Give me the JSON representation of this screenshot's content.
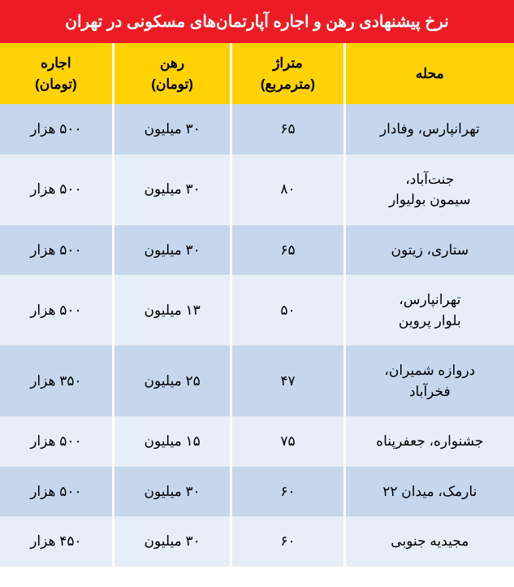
{
  "title": "نرخ پیشنهادی رهن و اجاره آپارتمان‌های مسکونی در تهران",
  "columns": {
    "neighborhood": "محله",
    "area": "متراژ\n(مترمربع)",
    "deposit": "رهن\n(تومان)",
    "rent": "اجاره\n(تومان)"
  },
  "rows": [
    {
      "neighborhood": "تهرانپارس، وفادار",
      "area": "۶۵",
      "deposit": "۳۰ میلیون",
      "rent": "۵۰۰ هزار"
    },
    {
      "neighborhood": "جنت‌آباد،\nسیمون بولیوار",
      "area": "۸۰",
      "deposit": "۳۰ میلیون",
      "rent": "۵۰۰ هزار"
    },
    {
      "neighborhood": "ستاری، زیتون",
      "area": "۶۵",
      "deposit": "۳۰ میلیون",
      "rent": "۵۰۰ هزار"
    },
    {
      "neighborhood": "تهرانپارس،\nبلوار پروین",
      "area": "۵۰",
      "deposit": "۱۳ میلیون",
      "rent": "۵۰۰ هزار"
    },
    {
      "neighborhood": "دروازه شمیران،\nفخرآباد",
      "area": "۴۷",
      "deposit": "۲۵ میلیون",
      "rent": "۳۵۰ هزار"
    },
    {
      "neighborhood": "جشنواره، جعفرپناه",
      "area": "۷۵",
      "deposit": "۱۵ میلیون",
      "rent": "۵۰۰ هزار"
    },
    {
      "neighborhood": "نارمک، میدان ۲۲",
      "area": "۶۰",
      "deposit": "۳۰ میلیون",
      "rent": "۵۰۰ هزار"
    },
    {
      "neighborhood": "مجیدیه جنوبی",
      "area": "۶۰",
      "deposit": "۳۰ میلیون",
      "rent": "۴۵۰ هزار"
    }
  ],
  "styling": {
    "title_bg": "#ed1c24",
    "title_color": "#ffffff",
    "header_bg": "#ffd200",
    "header_color": "#000000",
    "row_odd_bg": "#c4d7ed",
    "row_even_bg": "#e6eef7",
    "border_color": "#ffffff",
    "text_color": "#000000",
    "title_fontsize": 20,
    "header_fontsize": 17,
    "cell_fontsize": 17
  }
}
